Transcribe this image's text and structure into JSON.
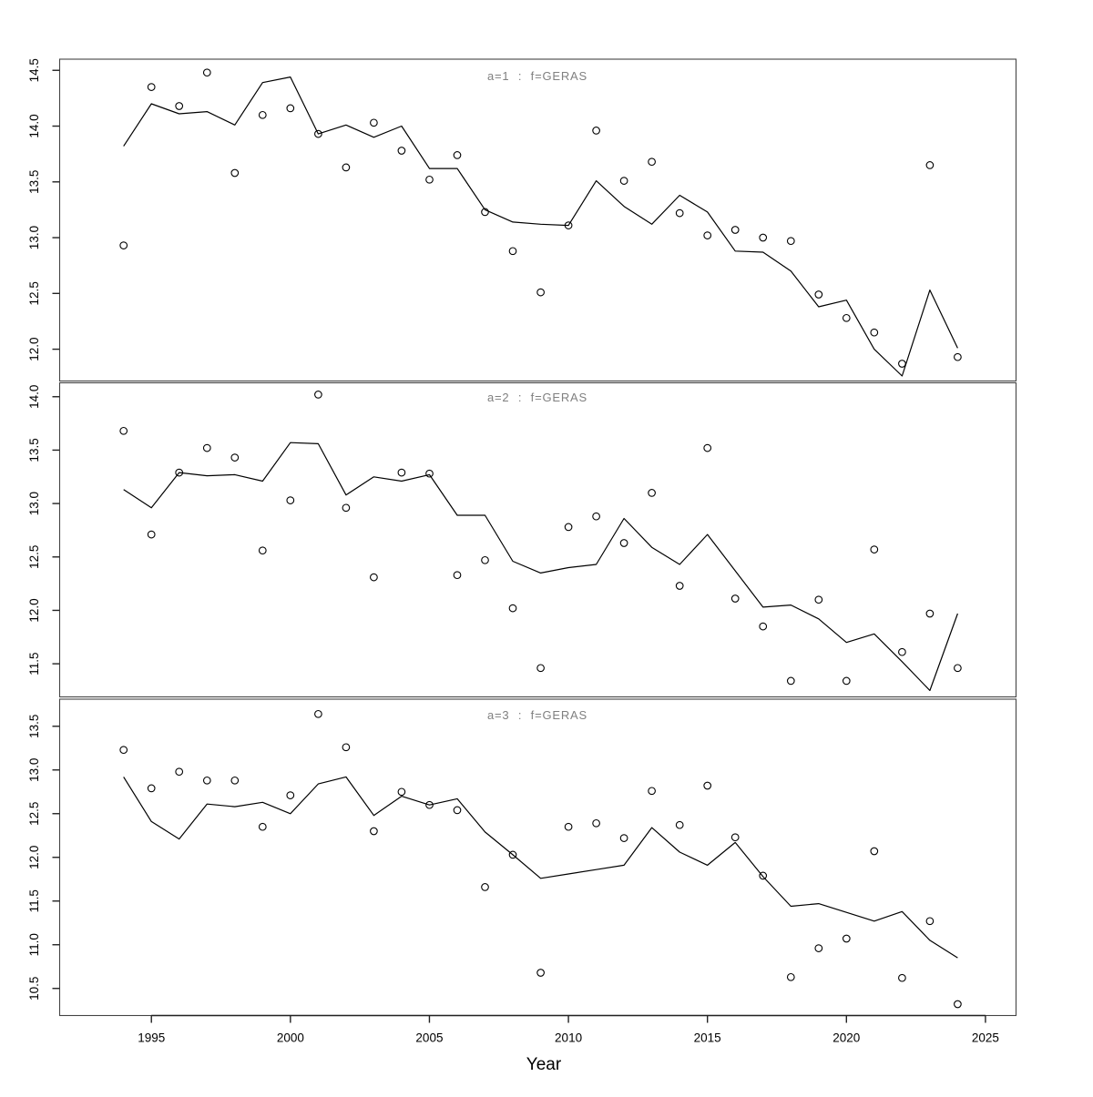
{
  "figure": {
    "xlabel": "Year",
    "background_color": "#ffffff",
    "title_color": "#808080",
    "line_color": "#000000",
    "point_color": "#000000"
  },
  "chart_data": {
    "type": "scatter",
    "subtype": "scatter-with-model-line, 3 stacked facets",
    "x_label": "Year",
    "x_ticks": [
      1995,
      2000,
      2005,
      2010,
      2015,
      2020,
      2025
    ],
    "xlim": [
      1991.7,
      2026.1
    ],
    "grid": "off",
    "legend": "none",
    "x": [
      1994,
      1995,
      1996,
      1997,
      1998,
      1999,
      2000,
      2001,
      2002,
      2003,
      2004,
      2005,
      2006,
      2007,
      2008,
      2009,
      2010,
      2011,
      2012,
      2013,
      2014,
      2015,
      2016,
      2017,
      2018,
      2019,
      2020,
      2021,
      2022,
      2023,
      2024
    ],
    "panels": [
      {
        "title": "a=1 : f=GERAS",
        "y_ticks": [
          12.0,
          12.5,
          13.0,
          13.5,
          14.0,
          14.5
        ],
        "ylim": [
          11.715,
          14.6
        ],
        "points": [
          12.93,
          14.35,
          14.18,
          14.48,
          13.58,
          14.1,
          14.16,
          13.93,
          13.63,
          14.03,
          13.78,
          13.52,
          13.74,
          13.23,
          12.88,
          12.51,
          13.11,
          13.96,
          13.51,
          13.68,
          13.22,
          13.02,
          13.07,
          13.0,
          12.97,
          12.49,
          12.28,
          12.15,
          11.87,
          13.65,
          11.93
        ],
        "line": [
          13.82,
          14.2,
          14.11,
          14.13,
          14.01,
          14.39,
          14.44,
          13.93,
          14.01,
          13.9,
          14.0,
          13.62,
          13.62,
          13.25,
          13.14,
          13.12,
          13.11,
          13.51,
          13.28,
          13.12,
          13.38,
          13.23,
          12.88,
          12.87,
          12.7,
          12.38,
          12.44,
          12.0,
          11.76,
          12.53,
          12.01
        ]
      },
      {
        "title": "a=2 : f=GERAS",
        "y_ticks": [
          11.5,
          12.0,
          12.5,
          13.0,
          13.5,
          14.0
        ],
        "ylim": [
          11.19,
          14.13
        ],
        "points": [
          13.68,
          12.71,
          13.29,
          13.52,
          13.43,
          12.56,
          13.03,
          14.02,
          12.96,
          12.31,
          13.29,
          13.28,
          12.33,
          12.47,
          12.02,
          11.46,
          12.78,
          12.88,
          12.63,
          13.1,
          12.23,
          13.52,
          12.11,
          11.85,
          11.34,
          12.1,
          11.34,
          12.57,
          11.61,
          11.97,
          11.46
        ],
        "line": [
          13.13,
          12.96,
          13.29,
          13.26,
          13.27,
          13.21,
          13.57,
          13.56,
          13.08,
          13.25,
          13.21,
          13.27,
          12.89,
          12.89,
          12.46,
          12.35,
          12.4,
          12.43,
          12.86,
          12.59,
          12.43,
          12.71,
          12.37,
          12.03,
          12.05,
          11.92,
          11.7,
          11.78,
          11.52,
          11.25,
          11.97
        ]
      },
      {
        "title": "a=3 : f=GERAS",
        "y_ticks": [
          10.5,
          11.0,
          11.5,
          12.0,
          12.5,
          13.0,
          13.5
        ],
        "ylim": [
          10.19,
          13.81
        ],
        "points": [
          13.23,
          12.79,
          12.98,
          12.88,
          12.88,
          12.35,
          12.71,
          13.64,
          13.26,
          12.3,
          12.75,
          12.6,
          12.54,
          11.66,
          12.03,
          10.68,
          12.35,
          12.39,
          12.22,
          12.76,
          12.37,
          12.82,
          12.23,
          11.79,
          10.63,
          10.96,
          11.07,
          12.07,
          10.62,
          11.27,
          10.32
        ],
        "line": [
          12.92,
          12.41,
          12.21,
          12.61,
          12.58,
          12.63,
          12.5,
          12.84,
          12.92,
          12.48,
          12.7,
          12.6,
          12.67,
          12.29,
          12.03,
          11.76,
          11.81,
          11.86,
          11.91,
          12.34,
          12.06,
          11.91,
          12.17,
          11.78,
          11.44,
          11.47,
          11.37,
          11.27,
          11.38,
          11.05,
          10.85
        ]
      }
    ]
  }
}
